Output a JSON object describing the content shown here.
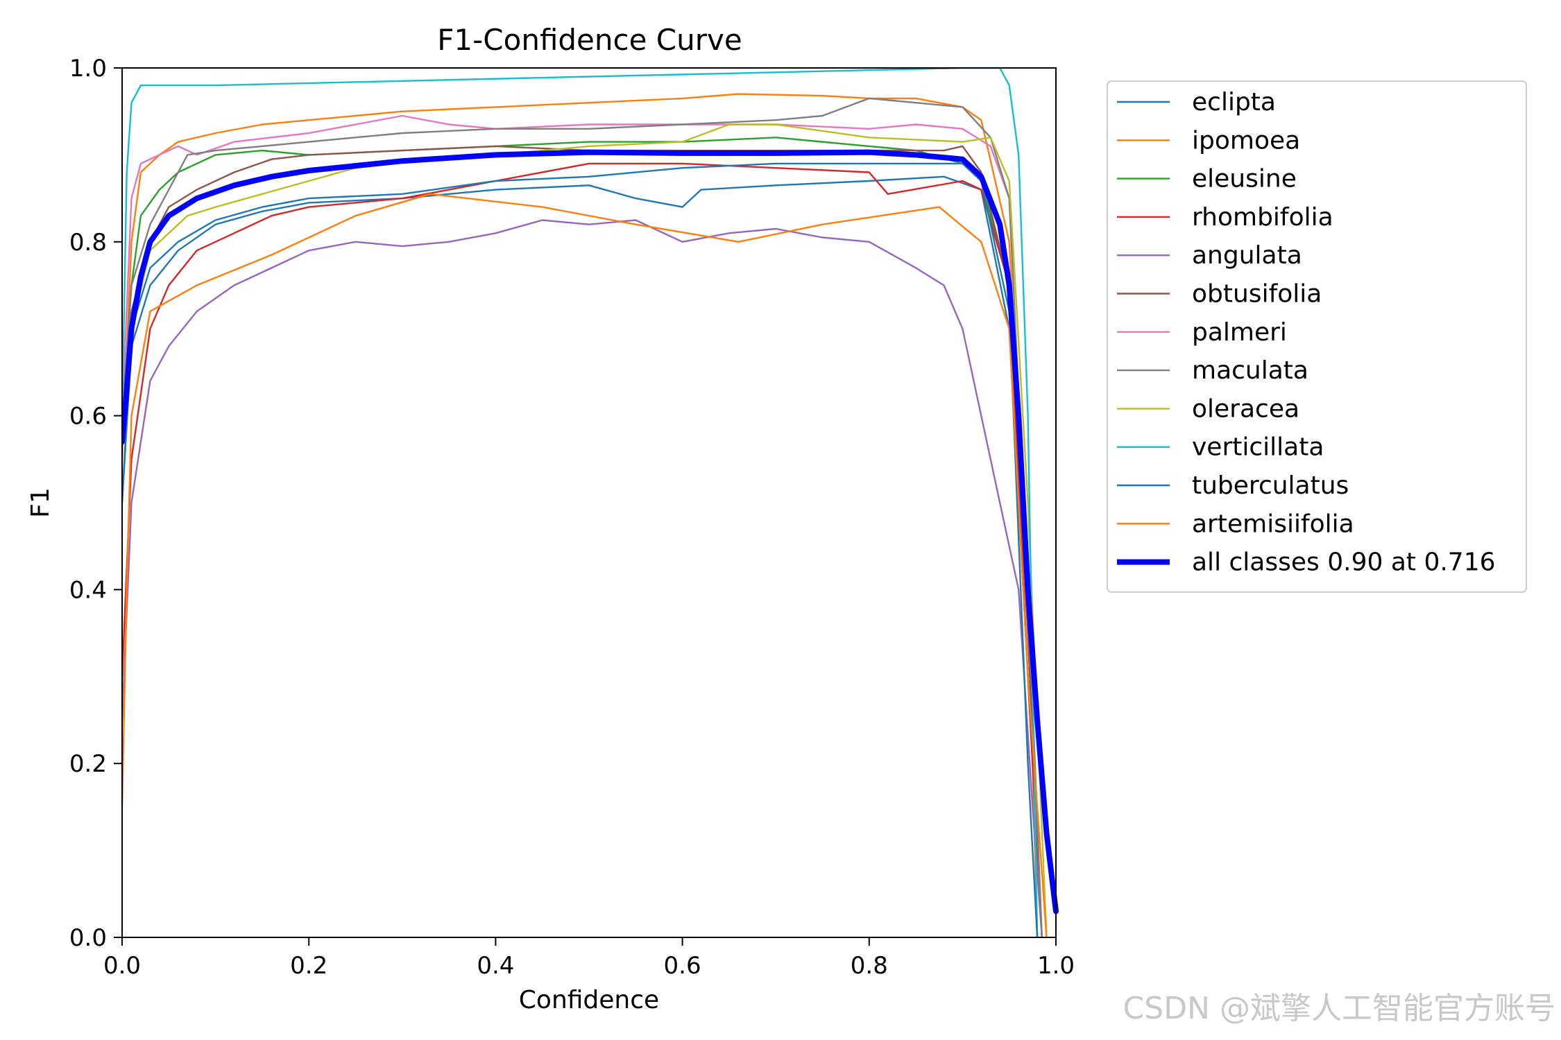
{
  "chart_data": {
    "type": "line",
    "title": "F1-Confidence Curve",
    "xlabel": "Confidence",
    "ylabel": "F1",
    "xlim": [
      0.0,
      1.0
    ],
    "ylim": [
      0.0,
      1.0
    ],
    "xticks": [
      "0.0",
      "0.2",
      "0.4",
      "0.6",
      "0.8",
      "1.0"
    ],
    "yticks": [
      "0.0",
      "0.2",
      "0.4",
      "0.6",
      "0.8",
      "1.0"
    ],
    "grid": false,
    "legend_position": "outside-right",
    "series": [
      {
        "name": "eclipta",
        "color": "#1f77b4",
        "points": [
          [
            0,
            0.5
          ],
          [
            0.01,
            0.68
          ],
          [
            0.03,
            0.75
          ],
          [
            0.06,
            0.79
          ],
          [
            0.1,
            0.82
          ],
          [
            0.15,
            0.835
          ],
          [
            0.2,
            0.845
          ],
          [
            0.3,
            0.85
          ],
          [
            0.4,
            0.86
          ],
          [
            0.5,
            0.865
          ],
          [
            0.55,
            0.85
          ],
          [
            0.6,
            0.84
          ],
          [
            0.62,
            0.86
          ],
          [
            0.7,
            0.865
          ],
          [
            0.8,
            0.87
          ],
          [
            0.88,
            0.875
          ],
          [
            0.92,
            0.86
          ],
          [
            0.95,
            0.7
          ],
          [
            0.97,
            0.3
          ],
          [
            0.985,
            0.0
          ]
        ]
      },
      {
        "name": "ipomoea",
        "color": "#ff7f0e",
        "points": [
          [
            0,
            0.55
          ],
          [
            0.01,
            0.8
          ],
          [
            0.02,
            0.88
          ],
          [
            0.04,
            0.9
          ],
          [
            0.06,
            0.915
          ],
          [
            0.1,
            0.925
          ],
          [
            0.15,
            0.935
          ],
          [
            0.2,
            0.94
          ],
          [
            0.3,
            0.95
          ],
          [
            0.4,
            0.955
          ],
          [
            0.5,
            0.96
          ],
          [
            0.6,
            0.965
          ],
          [
            0.66,
            0.97
          ],
          [
            0.75,
            0.968
          ],
          [
            0.8,
            0.965
          ],
          [
            0.85,
            0.965
          ],
          [
            0.9,
            0.955
          ],
          [
            0.92,
            0.94
          ],
          [
            0.95,
            0.8
          ],
          [
            0.97,
            0.4
          ],
          [
            0.98,
            0.0
          ]
        ]
      },
      {
        "name": "eleusine",
        "color": "#2ca02c",
        "points": [
          [
            0,
            0.6
          ],
          [
            0.01,
            0.75
          ],
          [
            0.02,
            0.83
          ],
          [
            0.04,
            0.86
          ],
          [
            0.06,
            0.88
          ],
          [
            0.1,
            0.9
          ],
          [
            0.15,
            0.905
          ],
          [
            0.2,
            0.9
          ],
          [
            0.3,
            0.905
          ],
          [
            0.4,
            0.91
          ],
          [
            0.5,
            0.915
          ],
          [
            0.6,
            0.915
          ],
          [
            0.7,
            0.92
          ],
          [
            0.8,
            0.91
          ],
          [
            0.85,
            0.905
          ],
          [
            0.9,
            0.89
          ],
          [
            0.92,
            0.87
          ],
          [
            0.95,
            0.75
          ],
          [
            0.97,
            0.35
          ],
          [
            0.985,
            0.0
          ]
        ]
      },
      {
        "name": "rhombifolia",
        "color": "#d62728",
        "points": [
          [
            0,
            0.3
          ],
          [
            0.01,
            0.55
          ],
          [
            0.03,
            0.7
          ],
          [
            0.05,
            0.75
          ],
          [
            0.08,
            0.79
          ],
          [
            0.12,
            0.81
          ],
          [
            0.16,
            0.83
          ],
          [
            0.2,
            0.84
          ],
          [
            0.3,
            0.85
          ],
          [
            0.35,
            0.86
          ],
          [
            0.4,
            0.87
          ],
          [
            0.5,
            0.89
          ],
          [
            0.6,
            0.89
          ],
          [
            0.7,
            0.885
          ],
          [
            0.8,
            0.88
          ],
          [
            0.82,
            0.855
          ],
          [
            0.9,
            0.87
          ],
          [
            0.92,
            0.86
          ],
          [
            0.95,
            0.75
          ],
          [
            0.97,
            0.3
          ],
          [
            0.985,
            0.0
          ]
        ]
      },
      {
        "name": "angulata",
        "color": "#9467bd",
        "points": [
          [
            0,
            0.25
          ],
          [
            0.01,
            0.5
          ],
          [
            0.03,
            0.64
          ],
          [
            0.05,
            0.68
          ],
          [
            0.08,
            0.72
          ],
          [
            0.12,
            0.75
          ],
          [
            0.16,
            0.77
          ],
          [
            0.2,
            0.79
          ],
          [
            0.25,
            0.8
          ],
          [
            0.3,
            0.795
          ],
          [
            0.35,
            0.8
          ],
          [
            0.4,
            0.81
          ],
          [
            0.45,
            0.825
          ],
          [
            0.5,
            0.82
          ],
          [
            0.55,
            0.825
          ],
          [
            0.6,
            0.8
          ],
          [
            0.65,
            0.81
          ],
          [
            0.7,
            0.815
          ],
          [
            0.75,
            0.805
          ],
          [
            0.8,
            0.8
          ],
          [
            0.85,
            0.77
          ],
          [
            0.88,
            0.75
          ],
          [
            0.9,
            0.7
          ],
          [
            0.92,
            0.6
          ],
          [
            0.94,
            0.5
          ],
          [
            0.96,
            0.4
          ],
          [
            0.975,
            0.15
          ],
          [
            0.985,
            0.0
          ]
        ]
      },
      {
        "name": "obtusifolia",
        "color": "#8c564b",
        "points": [
          [
            0,
            0.6
          ],
          [
            0.01,
            0.72
          ],
          [
            0.03,
            0.8
          ],
          [
            0.05,
            0.84
          ],
          [
            0.08,
            0.86
          ],
          [
            0.12,
            0.88
          ],
          [
            0.16,
            0.895
          ],
          [
            0.2,
            0.9
          ],
          [
            0.3,
            0.905
          ],
          [
            0.4,
            0.91
          ],
          [
            0.5,
            0.905
          ],
          [
            0.6,
            0.905
          ],
          [
            0.7,
            0.905
          ],
          [
            0.8,
            0.905
          ],
          [
            0.88,
            0.905
          ],
          [
            0.9,
            0.91
          ],
          [
            0.92,
            0.88
          ],
          [
            0.95,
            0.75
          ],
          [
            0.97,
            0.35
          ],
          [
            0.985,
            0.0
          ]
        ]
      },
      {
        "name": "palmeri",
        "color": "#e377c2",
        "points": [
          [
            0,
            0.6
          ],
          [
            0.01,
            0.85
          ],
          [
            0.02,
            0.89
          ],
          [
            0.04,
            0.9
          ],
          [
            0.06,
            0.91
          ],
          [
            0.08,
            0.9
          ],
          [
            0.12,
            0.915
          ],
          [
            0.2,
            0.925
          ],
          [
            0.3,
            0.945
          ],
          [
            0.35,
            0.935
          ],
          [
            0.4,
            0.93
          ],
          [
            0.5,
            0.935
          ],
          [
            0.6,
            0.935
          ],
          [
            0.7,
            0.935
          ],
          [
            0.8,
            0.93
          ],
          [
            0.85,
            0.935
          ],
          [
            0.9,
            0.93
          ],
          [
            0.93,
            0.91
          ],
          [
            0.95,
            0.85
          ],
          [
            0.97,
            0.4
          ],
          [
            0.985,
            0.0
          ]
        ]
      },
      {
        "name": "maculata",
        "color": "#7f7f7f",
        "points": [
          [
            0,
            0.6
          ],
          [
            0.01,
            0.75
          ],
          [
            0.03,
            0.82
          ],
          [
            0.05,
            0.86
          ],
          [
            0.07,
            0.9
          ],
          [
            0.1,
            0.905
          ],
          [
            0.15,
            0.91
          ],
          [
            0.2,
            0.915
          ],
          [
            0.3,
            0.925
          ],
          [
            0.4,
            0.93
          ],
          [
            0.5,
            0.93
          ],
          [
            0.6,
            0.935
          ],
          [
            0.7,
            0.94
          ],
          [
            0.75,
            0.945
          ],
          [
            0.8,
            0.965
          ],
          [
            0.85,
            0.96
          ],
          [
            0.9,
            0.955
          ],
          [
            0.93,
            0.92
          ],
          [
            0.95,
            0.85
          ],
          [
            0.97,
            0.4
          ],
          [
            0.985,
            0.0
          ]
        ]
      },
      {
        "name": "oleracea",
        "color": "#bcbd22",
        "points": [
          [
            0,
            0.6
          ],
          [
            0.01,
            0.7
          ],
          [
            0.03,
            0.79
          ],
          [
            0.05,
            0.81
          ],
          [
            0.07,
            0.83
          ],
          [
            0.1,
            0.84
          ],
          [
            0.15,
            0.855
          ],
          [
            0.2,
            0.87
          ],
          [
            0.25,
            0.885
          ],
          [
            0.3,
            0.895
          ],
          [
            0.4,
            0.9
          ],
          [
            0.5,
            0.91
          ],
          [
            0.6,
            0.915
          ],
          [
            0.65,
            0.935
          ],
          [
            0.7,
            0.935
          ],
          [
            0.8,
            0.92
          ],
          [
            0.9,
            0.915
          ],
          [
            0.93,
            0.92
          ],
          [
            0.95,
            0.87
          ],
          [
            0.97,
            0.5
          ],
          [
            0.99,
            0.0
          ]
        ]
      },
      {
        "name": "verticillata",
        "color": "#17becf",
        "points": [
          [
            0,
            0.6
          ],
          [
            0.005,
            0.88
          ],
          [
            0.01,
            0.96
          ],
          [
            0.02,
            0.98
          ],
          [
            0.1,
            0.98
          ],
          [
            0.3,
            0.985
          ],
          [
            0.5,
            0.99
          ],
          [
            0.7,
            0.995
          ],
          [
            0.9,
            1.0
          ],
          [
            0.94,
            1.0
          ],
          [
            0.95,
            0.98
          ],
          [
            0.96,
            0.9
          ],
          [
            0.97,
            0.6
          ],
          [
            0.98,
            0.0
          ]
        ]
      },
      {
        "name": "tuberculatus",
        "color": "#1f77b4",
        "points": [
          [
            0,
            0.5
          ],
          [
            0.01,
            0.7
          ],
          [
            0.03,
            0.77
          ],
          [
            0.06,
            0.8
          ],
          [
            0.1,
            0.825
          ],
          [
            0.15,
            0.84
          ],
          [
            0.2,
            0.85
          ],
          [
            0.3,
            0.855
          ],
          [
            0.4,
            0.87
          ],
          [
            0.5,
            0.875
          ],
          [
            0.6,
            0.885
          ],
          [
            0.7,
            0.89
          ],
          [
            0.8,
            0.89
          ],
          [
            0.9,
            0.89
          ],
          [
            0.92,
            0.87
          ],
          [
            0.95,
            0.72
          ],
          [
            0.97,
            0.2
          ],
          [
            0.98,
            0.0
          ]
        ]
      },
      {
        "name": "artemisiifolia",
        "color": "#ff7f0e",
        "points": [
          [
            0,
            0.15
          ],
          [
            0.005,
            0.4
          ],
          [
            0.01,
            0.6
          ],
          [
            0.03,
            0.72
          ],
          [
            0.08,
            0.75
          ],
          [
            0.16,
            0.785
          ],
          [
            0.25,
            0.83
          ],
          [
            0.33,
            0.855
          ],
          [
            0.45,
            0.84
          ],
          [
            0.55,
            0.82
          ],
          [
            0.66,
            0.8
          ],
          [
            0.75,
            0.82
          ],
          [
            0.875,
            0.84
          ],
          [
            0.92,
            0.8
          ],
          [
            0.95,
            0.7
          ],
          [
            0.97,
            0.3
          ],
          [
            0.99,
            0.0
          ]
        ]
      },
      {
        "name": "all classes 0.90 at 0.716",
        "color": "#0000ff",
        "bold": true,
        "points": [
          [
            0,
            0.57
          ],
          [
            0.005,
            0.63
          ],
          [
            0.01,
            0.7
          ],
          [
            0.02,
            0.76
          ],
          [
            0.03,
            0.8
          ],
          [
            0.05,
            0.83
          ],
          [
            0.08,
            0.85
          ],
          [
            0.12,
            0.865
          ],
          [
            0.16,
            0.875
          ],
          [
            0.2,
            0.882
          ],
          [
            0.3,
            0.893
          ],
          [
            0.4,
            0.9
          ],
          [
            0.5,
            0.903
          ],
          [
            0.6,
            0.902
          ],
          [
            0.7,
            0.902
          ],
          [
            0.8,
            0.903
          ],
          [
            0.85,
            0.9
          ],
          [
            0.9,
            0.895
          ],
          [
            0.92,
            0.875
          ],
          [
            0.94,
            0.82
          ],
          [
            0.95,
            0.75
          ],
          [
            0.96,
            0.6
          ],
          [
            0.97,
            0.4
          ],
          [
            0.98,
            0.25
          ],
          [
            0.99,
            0.12
          ],
          [
            1.0,
            0.03
          ]
        ]
      }
    ]
  },
  "watermark": "CSDN @斌擎人工智能官方账号"
}
